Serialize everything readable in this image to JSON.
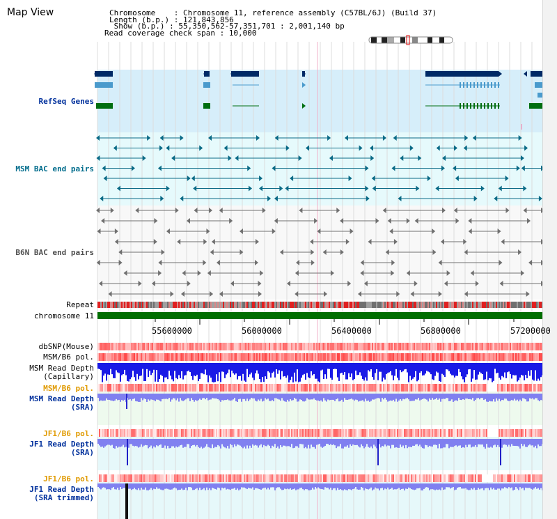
{
  "page": {
    "title": "Map View"
  },
  "header": {
    "chromosome": "Chromosome    : Chromosome 11, reference assembly (C57BL/6J) (Build 37)",
    "length": "Length (b.p.) : 121,843,856",
    "show": " Show (b.p.) : 55,350,562-57,351,701 : 2,001,140 bp",
    "read_span": "Read coverage check span : 10,000"
  },
  "tracks": {
    "refseq": "RefSeq Genes",
    "msm_bac": "MSM BAC end pairs",
    "b6n_bac": "B6N BAC end pairs",
    "repeat": "Repeat",
    "chromosome": "chromosome 11",
    "dbsnp": "dbSNP(Mouse)",
    "msm_b6_pol_1": "MSM/B6 pol.",
    "msm_depth_cap_1": "MSM Read Depth",
    "msm_depth_cap_2": "(Capillary)",
    "msm_b6_pol_2": "MSM/B6 pol.",
    "msm_depth_sra_1": "MSM Read Depth",
    "msm_depth_sra_2": "(SRA)",
    "jf1_b6_pol_1": "JF1/B6 pol.",
    "jf1_depth_sra_1": "JF1 Read Depth",
    "jf1_depth_sra_2": "(SRA)",
    "jf1_b6_pol_2": "JF1/B6 pol.",
    "jf1_depth_trim_1": "JF1 Read Depth",
    "jf1_depth_trim_2": "(SRA trimmed)"
  },
  "axis": {
    "ticks": [
      "55600000",
      "56000000",
      "56400000",
      "56800000",
      "57200000"
    ]
  },
  "colors": {
    "refseq_bg": "#d6eefa",
    "bac_bg": "#e6fafc",
    "b6n_bg": "#f8f8f8",
    "refseq_dark": "#002a66",
    "refseq_light": "#4a9acc",
    "refseq_green": "#006e10",
    "msm_bac": "#0a6a86",
    "b6n_bac": "#707070",
    "depth_blue": "#1a1ae6",
    "depth_light": "#8080f0",
    "snp_red": "#f05050",
    "chrom_green": "#006e00"
  }
}
